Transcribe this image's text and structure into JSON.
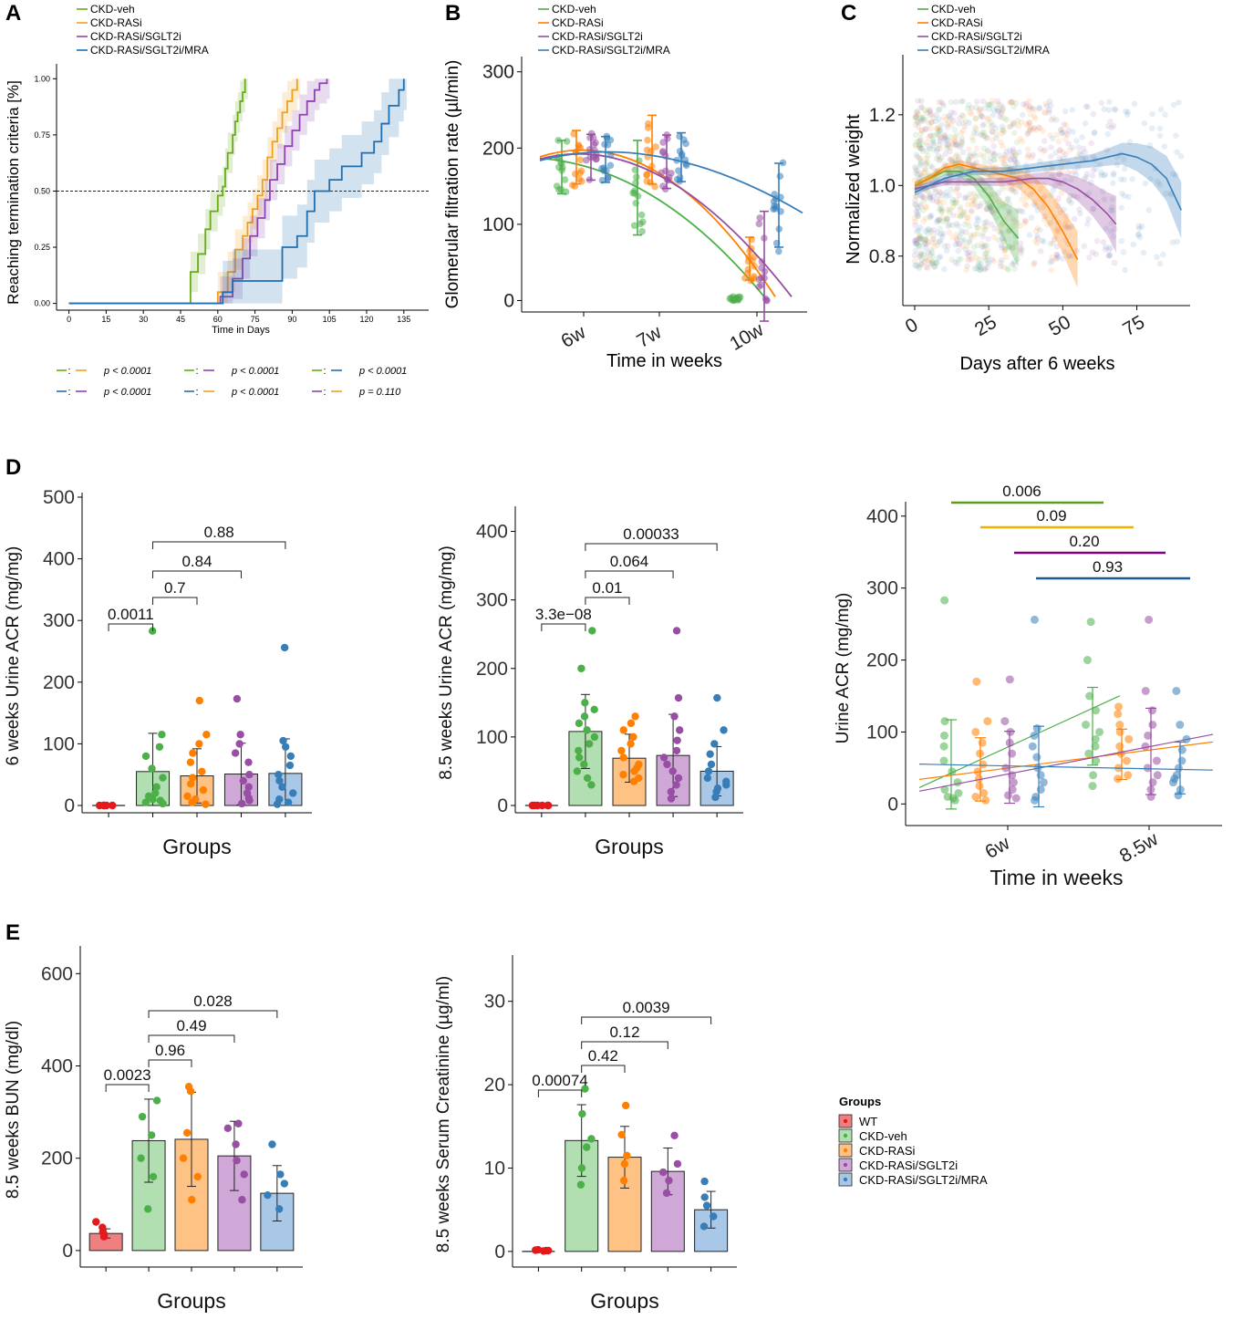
{
  "colors": {
    "WT": "#e31a1c",
    "CKD-veh": "#4daf4a",
    "CKD-RASi": "#ff7f00",
    "CKD-RASi/SGLT2i": "#984ea3",
    "CKD-RASi/SGLT2i/MRA": "#377eb8",
    "km_veh": "#6aab1c",
    "km_rasi": "#f0a020",
    "km_sglt": "#8e44ad",
    "km_mra": "#1f6fb0",
    "bar_WT": "#f08080",
    "bar_veh": "#b2dfb2",
    "bar_rasi": "#ffc285",
    "bar_sglt": "#cfa8d8",
    "bar_mra": "#a9c8e8",
    "sig_veh": "#5a9e1a",
    "sig_rasi": "#f0b400",
    "sig_sglt": "#800080",
    "sig_mra": "#1a5a99"
  },
  "panel_labels": [
    "A",
    "B",
    "C",
    "D",
    "E"
  ],
  "series_names": [
    "CKD-veh",
    "CKD-RASi",
    "CKD-RASi/SGLT2i",
    "CKD-RASi/SGLT2i/MRA"
  ],
  "chart_data": [
    {
      "panel": "A",
      "type": "line",
      "ylabel": "Reaching termination criteria [%]",
      "xlabel": "Time in Days",
      "xticks": [
        0,
        15,
        30,
        45,
        60,
        75,
        90,
        105,
        120,
        135
      ],
      "yticks": [
        "0.00",
        "0.25",
        "0.50",
        "0.75",
        "1.00"
      ],
      "xlim": [
        -5,
        145
      ],
      "ylim": [
        -0.03,
        1.05
      ],
      "reference_line": 0.5,
      "series": [
        {
          "name": "CKD-veh",
          "x": [
            0,
            49,
            52,
            55,
            57,
            60,
            62,
            63,
            64,
            66,
            67,
            68,
            69,
            70,
            71
          ],
          "y": [
            0,
            0.14,
            0.22,
            0.33,
            0.41,
            0.48,
            0.52,
            0.6,
            0.67,
            0.75,
            0.81,
            0.85,
            0.9,
            0.94,
            1.0
          ]
        },
        {
          "name": "CKD-RASi",
          "x": [
            0,
            60,
            64,
            67,
            70,
            72,
            74,
            76,
            78,
            80,
            82,
            84,
            86,
            88,
            90,
            92
          ],
          "y": [
            0,
            0.05,
            0.14,
            0.24,
            0.3,
            0.36,
            0.42,
            0.48,
            0.55,
            0.65,
            0.72,
            0.78,
            0.85,
            0.9,
            0.95,
            1.0
          ]
        },
        {
          "name": "CKD-RASi/SGLT2i",
          "x": [
            0,
            61,
            66,
            70,
            73,
            76,
            79,
            81,
            84,
            87,
            90,
            93,
            96,
            99,
            101,
            104
          ],
          "y": [
            0,
            0.03,
            0.11,
            0.2,
            0.3,
            0.38,
            0.46,
            0.55,
            0.62,
            0.7,
            0.77,
            0.84,
            0.9,
            0.95,
            0.98,
            1.0
          ]
        },
        {
          "name": "CKD-RASi/SGLT2i/MRA",
          "x": [
            0,
            62,
            66,
            80,
            86,
            92,
            96,
            99,
            105,
            110,
            118,
            123,
            126,
            129,
            133,
            135
          ],
          "y": [
            0,
            0.05,
            0.1,
            0.1,
            0.25,
            0.3,
            0.41,
            0.5,
            0.55,
            0.61,
            0.67,
            0.72,
            0.8,
            0.88,
            0.95,
            1.0
          ]
        }
      ],
      "pvalues": [
        {
          "a": "CKD-veh",
          "b": "CKD-RASi",
          "p": "p < 0.0001"
        },
        {
          "a": "CKD-veh",
          "b": "CKD-RASi/SGLT2i",
          "p": "p < 0.0001"
        },
        {
          "a": "CKD-veh",
          "b": "CKD-RASi/SGLT2i/MRA",
          "p": "p < 0.0001"
        },
        {
          "a": "CKD-RASi/SGLT2i/MRA",
          "b": "CKD-RASi/SGLT2i",
          "p": "p < 0.0001"
        },
        {
          "a": "CKD-RASi/SGLT2i/MRA",
          "b": "CKD-RASi",
          "p": "p < 0.0001"
        },
        {
          "a": "CKD-RASi/SGLT2i",
          "b": "CKD-RASi",
          "p": "p = 0.110"
        }
      ]
    },
    {
      "panel": "B",
      "type": "scatter",
      "ylabel": "Glomerular filtration rate (µl/min)",
      "xlabel": "Time in weeks",
      "categories": [
        "6w",
        "7w",
        "10w"
      ],
      "yticks": [
        0,
        100,
        200,
        300
      ],
      "ylim": [
        -15,
        320
      ],
      "series": [
        {
          "name": "CKD-veh",
          "means": [
            175,
            148,
            2
          ],
          "sd": [
            35,
            62,
            3
          ],
          "trend": [
            183,
            160,
            2
          ]
        },
        {
          "name": "CKD-RASi",
          "means": [
            188,
            198,
            55
          ],
          "sd": [
            35,
            45,
            28
          ],
          "trend": [
            185,
            195,
            5
          ]
        },
        {
          "name": "CKD-RASi/SGLT2i",
          "means": [
            188,
            182,
            45
          ],
          "sd": [
            30,
            35,
            72
          ],
          "trend": [
            182,
            185,
            5
          ]
        },
        {
          "name": "CKD-RASi/SGLT2i/MRA",
          "means": [
            185,
            188,
            125
          ],
          "sd": [
            30,
            32,
            55
          ],
          "trend": [
            180,
            182,
            115
          ]
        }
      ]
    },
    {
      "panel": "C",
      "type": "scatter",
      "ylabel": "Normalized weight",
      "xlabel": "Days after 6 weeks",
      "xticks": [
        0,
        25,
        50,
        75
      ],
      "yticks": [
        "0.8",
        "1.0",
        "1.2"
      ],
      "xlim": [
        -4,
        93
      ],
      "ylim": [
        0.66,
        1.37
      ],
      "series": [
        {
          "name": "CKD-veh",
          "x": [
            0,
            5,
            10,
            15,
            20,
            25,
            30,
            35
          ],
          "y": [
            1.0,
            1.02,
            1.04,
            1.04,
            1.02,
            0.97,
            0.9,
            0.85
          ]
        },
        {
          "name": "CKD-RASi",
          "x": [
            0,
            5,
            10,
            15,
            20,
            25,
            30,
            35,
            40,
            45,
            50,
            55
          ],
          "y": [
            1.0,
            1.02,
            1.05,
            1.06,
            1.05,
            1.04,
            1.03,
            1.02,
            0.99,
            0.94,
            0.87,
            0.79
          ]
        },
        {
          "name": "CKD-RASi/SGLT2i",
          "x": [
            0,
            10,
            20,
            30,
            40,
            45,
            50,
            55,
            60,
            65,
            68
          ],
          "y": [
            0.99,
            1.01,
            1.01,
            1.01,
            1.02,
            1.02,
            1.01,
            0.99,
            0.96,
            0.92,
            0.89
          ]
        },
        {
          "name": "CKD-RASi/SGLT2i/MRA",
          "x": [
            0,
            10,
            20,
            30,
            40,
            50,
            60,
            65,
            70,
            75,
            80,
            85,
            90
          ],
          "y": [
            0.98,
            1.02,
            1.04,
            1.04,
            1.05,
            1.06,
            1.07,
            1.08,
            1.09,
            1.08,
            1.06,
            1.02,
            0.93
          ]
        }
      ]
    },
    {
      "panel": "D1",
      "type": "bar",
      "ylabel": "6 weeks Urine ACR (mg/mg)",
      "xlabel": "Groups",
      "categories": [
        "WT",
        "CKD-veh",
        "CKD-RASi",
        "CKD-RASi/SGLT2i",
        "CKD-RASi/SGLT2i/MRA"
      ],
      "values": [
        0,
        55,
        48,
        51,
        52
      ],
      "sd": [
        0.5,
        62,
        44,
        50,
        56
      ],
      "yticks": [
        0,
        100,
        200,
        300,
        400,
        500
      ],
      "ylim": [
        0,
        500
      ],
      "points": [
        [
          0,
          0,
          0,
          0,
          0,
          0
        ],
        [
          283,
          115,
          95,
          80,
          60,
          45,
          30,
          20,
          15,
          10,
          8,
          5,
          3
        ],
        [
          170,
          115,
          100,
          85,
          70,
          55,
          45,
          35,
          25,
          15,
          10,
          5,
          2
        ],
        [
          173,
          115,
          100,
          85,
          70,
          50,
          40,
          30,
          20,
          12,
          8,
          3
        ],
        [
          256,
          105,
          95,
          80,
          65,
          50,
          40,
          30,
          20,
          10,
          5,
          2
        ]
      ],
      "brackets": [
        {
          "from": 0,
          "to": 1,
          "label": "0.0011"
        },
        {
          "from": 1,
          "to": 2,
          "label": "0.7"
        },
        {
          "from": 1,
          "to": 3,
          "label": "0.84"
        },
        {
          "from": 1,
          "to": 4,
          "label": "0.88"
        }
      ]
    },
    {
      "panel": "D2",
      "type": "bar",
      "ylabel": "8.5 weeks Urine ACR (mg/mg)",
      "xlabel": "Groups",
      "categories": [
        "WT",
        "CKD-veh",
        "CKD-RASi",
        "CKD-RASi/SGLT2i",
        "CKD-RASi/SGLT2i/MRA"
      ],
      "values": [
        0,
        108,
        69,
        73,
        50
      ],
      "sd": [
        0.5,
        54,
        35,
        60,
        36
      ],
      "yticks": [
        0,
        100,
        200,
        300,
        400
      ],
      "ylim": [
        0,
        430
      ],
      "points": [
        [
          0,
          0,
          0,
          0,
          0,
          0
        ],
        [
          255,
          200,
          150,
          140,
          130,
          120,
          110,
          100,
          90,
          80,
          70,
          60,
          50,
          40,
          30
        ],
        [
          130,
          120,
          110,
          100,
          90,
          80,
          70,
          60,
          55,
          50,
          45,
          40,
          35
        ],
        [
          255,
          157,
          130,
          110,
          95,
          80,
          70,
          60,
          50,
          40,
          30,
          20,
          10
        ],
        [
          157,
          110,
          90,
          75,
          60,
          50,
          40,
          35,
          30,
          25,
          20,
          12
        ]
      ],
      "brackets": [
        {
          "from": 0,
          "to": 1,
          "label": "3.3e−08"
        },
        {
          "from": 1,
          "to": 2,
          "label": "0.01"
        },
        {
          "from": 1,
          "to": 3,
          "label": "0.064"
        },
        {
          "from": 1,
          "to": 4,
          "label": "0.00033"
        }
      ]
    },
    {
      "panel": "D3",
      "type": "scatter",
      "ylabel": "Urine ACR (mg/mg)",
      "xlabel": "Time in weeks",
      "categories": [
        "6w",
        "8.5w"
      ],
      "yticks": [
        0,
        100,
        200,
        300,
        400
      ],
      "ylim": [
        -30,
        420
      ],
      "series": [
        {
          "name": "CKD-veh",
          "means": [
            55,
            108
          ],
          "sd": [
            62,
            54
          ],
          "trend": [
            43,
            133
          ],
          "points": [
            [
              283,
              115,
              95,
              80,
              60,
              45,
              30,
              20,
              15,
              10,
              8,
              5
            ],
            [
              253,
              200,
              150,
              130,
              110,
              100,
              90,
              80,
              70,
              60,
              40,
              25
            ]
          ]
        },
        {
          "name": "CKD-RASi",
          "means": [
            48,
            69
          ],
          "sd": [
            44,
            35
          ],
          "trend": [
            45,
            70
          ],
          "points": [
            [
              170,
              115,
              100,
              85,
              70,
              55,
              45,
              35,
              25,
              15,
              10,
              5
            ],
            [
              135,
              125,
              110,
              100,
              90,
              80,
              70,
              60,
              50,
              40,
              35
            ]
          ]
        },
        {
          "name": "CKD-RASi/SGLT2i",
          "means": [
            51,
            73
          ],
          "sd": [
            50,
            60
          ],
          "trend": [
            42,
            80
          ],
          "points": [
            [
              173,
              115,
              100,
              85,
              70,
              50,
              40,
              30,
              20,
              12,
              8
            ],
            [
              256,
              157,
              130,
              110,
              95,
              80,
              60,
              50,
              40,
              30,
              20,
              10
            ]
          ]
        },
        {
          "name": "CKD-RASi/SGLT2i/MRA",
          "means": [
            52,
            50
          ],
          "sd": [
            56,
            36
          ],
          "trend": [
            52,
            48
          ],
          "points": [
            [
              256,
              105,
              95,
              80,
              65,
              50,
              40,
              30,
              20,
              10,
              5
            ],
            [
              157,
              110,
              90,
              75,
              60,
              50,
              40,
              35,
              30,
              20,
              12
            ]
          ]
        }
      ],
      "significance": [
        {
          "group": "CKD-veh",
          "label": "0.006"
        },
        {
          "group": "CKD-RASi",
          "label": "0.09"
        },
        {
          "group": "CKD-RASi/SGLT2i",
          "label": "0.20"
        },
        {
          "group": "CKD-RASi/SGLT2i/MRA",
          "label": "0.93"
        }
      ]
    },
    {
      "panel": "E1",
      "type": "bar",
      "ylabel": "8.5 weeks BUN (mg/dl)",
      "xlabel": "Groups",
      "categories": [
        "WT",
        "CKD-veh",
        "CKD-RASi",
        "CKD-RASi/SGLT2i",
        "CKD-RASi/SGLT2i/MRA"
      ],
      "values": [
        37,
        238,
        241,
        205,
        124
      ],
      "sd": [
        10,
        90,
        102,
        75,
        60
      ],
      "yticks": [
        0,
        200,
        400,
        600
      ],
      "ylim": [
        -20,
        650
      ],
      "points": [
        [
          62,
          50,
          40,
          35,
          30
        ],
        [
          325,
          290,
          250,
          200,
          160,
          90
        ],
        [
          355,
          345,
          255,
          200,
          160,
          110
        ],
        [
          275,
          265,
          230,
          195,
          165,
          110
        ],
        [
          230,
          165,
          145,
          120,
          90
        ]
      ],
      "brackets": [
        {
          "from": 0,
          "to": 1,
          "label": "0.0023"
        },
        {
          "from": 1,
          "to": 2,
          "label": "0.96"
        },
        {
          "from": 1,
          "to": 3,
          "label": "0.49"
        },
        {
          "from": 1,
          "to": 4,
          "label": "0.028"
        }
      ]
    },
    {
      "panel": "E2",
      "type": "bar",
      "ylabel": "8.5 weeks Serum Creatinine (µg/ml)",
      "xlabel": "Groups",
      "categories": [
        "WT",
        "CKD-veh",
        "CKD-RASi",
        "CKD-RASi/SGLT2i",
        "CKD-RASi/SGLT2i/MRA"
      ],
      "values": [
        0.1,
        13.3,
        11.3,
        9.6,
        5.0
      ],
      "sd": [
        0.1,
        4.3,
        3.7,
        2.8,
        2.2
      ],
      "yticks": [
        0,
        10,
        20,
        30
      ],
      "ylim": [
        -1,
        35
      ],
      "points": [
        [
          0.2,
          0.15,
          0.1,
          0.1,
          0.05
        ],
        [
          19.5,
          16.5,
          13.5,
          12.5,
          10,
          8
        ],
        [
          17.5,
          14,
          11.5,
          10.5,
          8.5
        ],
        [
          13.9,
          10.5,
          9.5,
          8.5,
          7
        ],
        [
          8.4,
          6.5,
          5.5,
          4.2,
          3
        ]
      ],
      "brackets": [
        {
          "from": 0,
          "to": 1,
          "label": "0.00074"
        },
        {
          "from": 1,
          "to": 2,
          "label": "0.42"
        },
        {
          "from": 1,
          "to": 3,
          "label": "0.12"
        },
        {
          "from": 1,
          "to": 4,
          "label": "0.0039"
        }
      ]
    }
  ],
  "legend": {
    "title": "Groups",
    "items": [
      "WT",
      "CKD-veh",
      "CKD-RASi",
      "CKD-RASi/SGLT2i",
      "CKD-RASi/SGLT2i/MRA"
    ]
  }
}
